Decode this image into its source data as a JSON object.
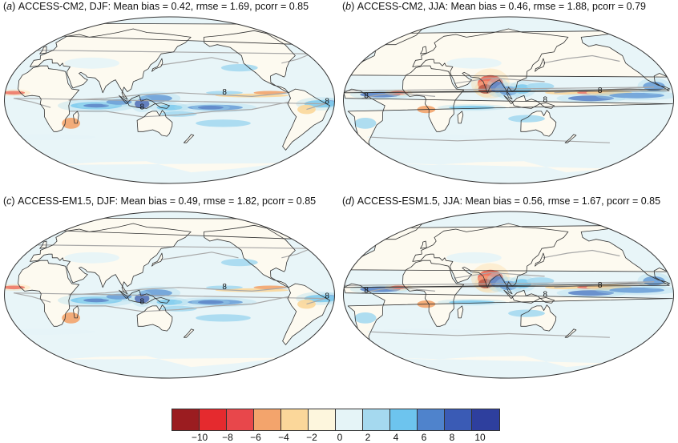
{
  "panels": [
    {
      "letter": "a",
      "title": "ACCESS-CM2, DJF: Mean bias = 0.42, rmse = 1.69, pcorr = 0.85",
      "season": "DJF"
    },
    {
      "letter": "b",
      "title": "ACCESS-CM2, JJA: Mean bias = 0.46, rmse = 1.88, pcorr = 0.79",
      "season": "JJA"
    },
    {
      "letter": "c",
      "title": "ACCESS-EM1.5, DJF: Mean bias = 0.49, rmse = 1.82, pcorr = 0.85",
      "season": "DJF"
    },
    {
      "letter": "d",
      "title": "ACCESS-ESM1.5, JJA: Mean bias = 0.56, rmse = 1.67, pcorr = 0.85",
      "season": "JJA"
    }
  ],
  "contour_label": "8",
  "colorbar": {
    "colors": [
      "#9b1c20",
      "#e52a2e",
      "#e8474b",
      "#f3a46c",
      "#fbd79a",
      "#fdf6dd",
      "#e5f4f7",
      "#a5d9ef",
      "#6dc4ee",
      "#4f83cc",
      "#3a5bb5",
      "#2e3f9e"
    ],
    "tick_labels": [
      "−10",
      "−8",
      "−6",
      "−4",
      "−2",
      "0",
      "2",
      "4",
      "6",
      "8",
      "10"
    ]
  },
  "colors": {
    "ocean_base": "#e8f5f8",
    "land_base": "#fdfaf0",
    "coastline": "#333333",
    "grey_contour": "#a8a8a8"
  }
}
